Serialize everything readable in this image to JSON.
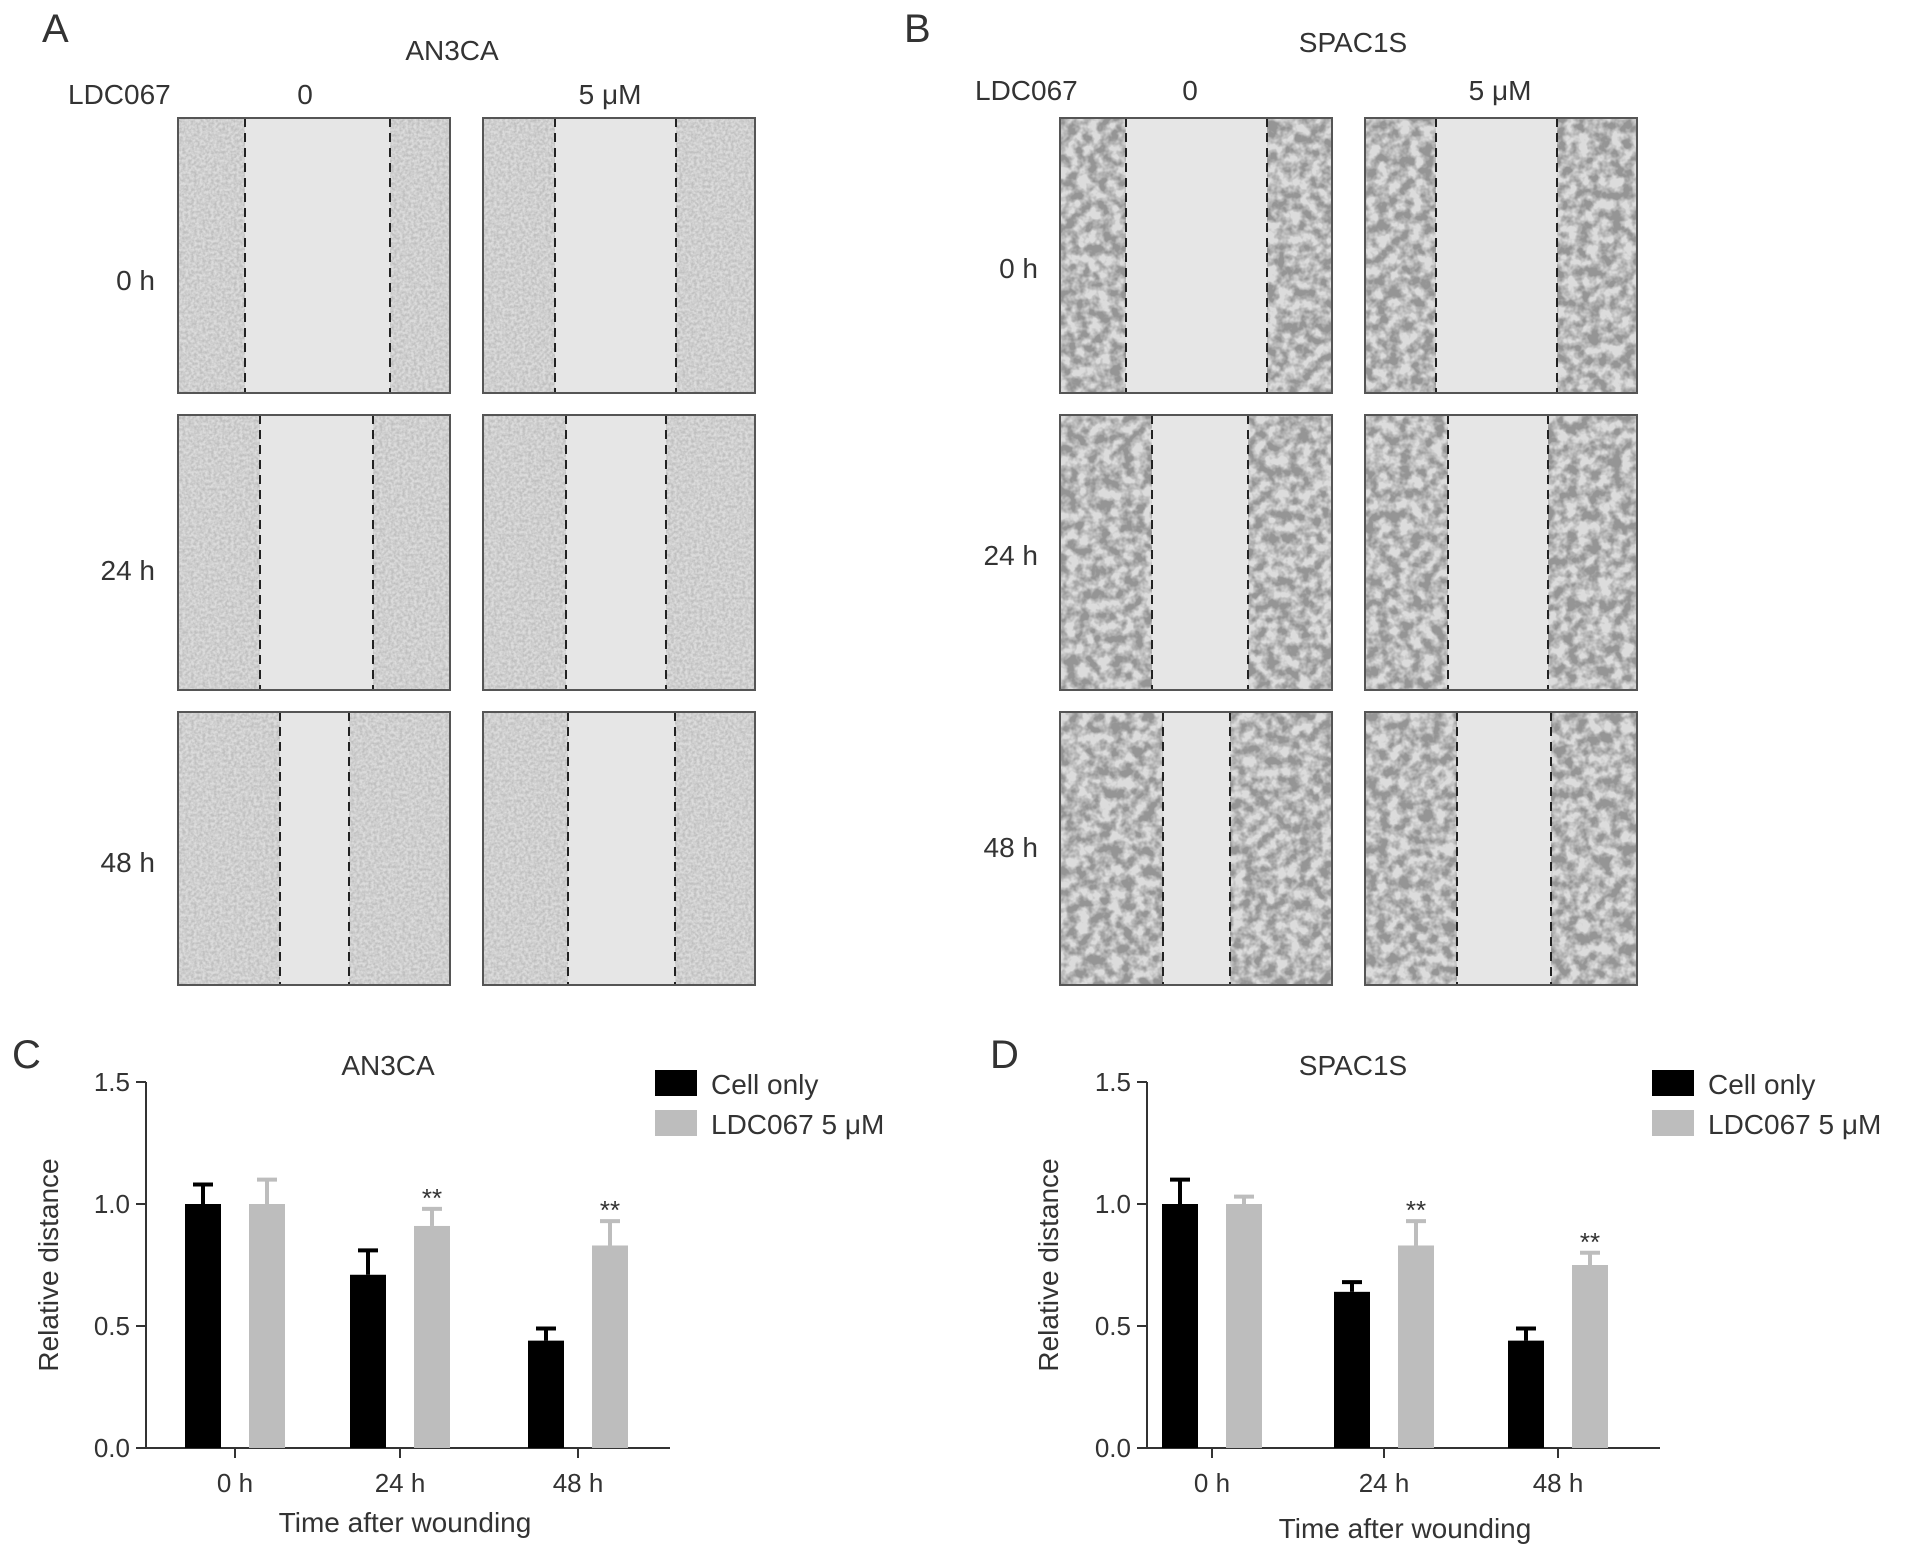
{
  "micrograph_panels": [
    {
      "letter": "A",
      "title": "AN3CA",
      "treatment_label": "LDC067",
      "columns": [
        "0",
        "5 μM"
      ],
      "rows": [
        "0 h",
        "24 h",
        "48 h"
      ]
    },
    {
      "letter": "B",
      "title": "SPAC1S",
      "treatment_label": "LDC067",
      "columns": [
        "0",
        "5 μM"
      ],
      "rows": [
        "0 h",
        "24 h",
        "48 h"
      ]
    }
  ],
  "colors": {
    "cell_only": "#000000",
    "ldc067": "#bdbdbd",
    "axis": "#333333",
    "image_background": "#dcdcdc",
    "wound_area": "#e6e6e6",
    "cells": "#8a8a8a"
  },
  "chart_data": [
    {
      "panel": "C",
      "type": "bar",
      "title": "AN3CA",
      "xlabel": "Time after wounding",
      "ylabel": "Relative distance",
      "ylim": [
        0,
        1.5
      ],
      "yticks": [
        "0.0",
        "0.5",
        "1.0",
        "1.5"
      ],
      "categories": [
        "0 h",
        "24 h",
        "48 h"
      ],
      "series": [
        {
          "name": "Cell only",
          "values": [
            1.0,
            0.71,
            0.44
          ],
          "errors": [
            0.08,
            0.1,
            0.05
          ]
        },
        {
          "name": "LDC067 5 μM",
          "values": [
            1.0,
            0.91,
            0.83
          ],
          "errors": [
            0.1,
            0.07,
            0.1
          ]
        }
      ],
      "annotations": [
        {
          "category": "24 h",
          "series": "LDC067 5 μM",
          "text": "**"
        },
        {
          "category": "48 h",
          "series": "LDC067 5 μM",
          "text": "**"
        }
      ],
      "legend_position": "top-right",
      "grid": false
    },
    {
      "panel": "D",
      "type": "bar",
      "title": "SPAC1S",
      "xlabel": "Time after wounding",
      "ylabel": "Relative distance",
      "ylim": [
        0,
        1.5
      ],
      "yticks": [
        "0.0",
        "0.5",
        "1.0",
        "1.5"
      ],
      "categories": [
        "0 h",
        "24 h",
        "48 h"
      ],
      "series": [
        {
          "name": "Cell only",
          "values": [
            1.0,
            0.64,
            0.44
          ],
          "errors": [
            0.1,
            0.04,
            0.05
          ]
        },
        {
          "name": "LDC067 5 μM",
          "values": [
            1.0,
            0.83,
            0.75
          ],
          "errors": [
            0.03,
            0.1,
            0.05
          ]
        }
      ],
      "annotations": [
        {
          "category": "24 h",
          "series": "LDC067 5 μM",
          "text": "**"
        },
        {
          "category": "48 h",
          "series": "LDC067 5 μM",
          "text": "**"
        }
      ],
      "legend_position": "top-right",
      "grid": false
    }
  ]
}
